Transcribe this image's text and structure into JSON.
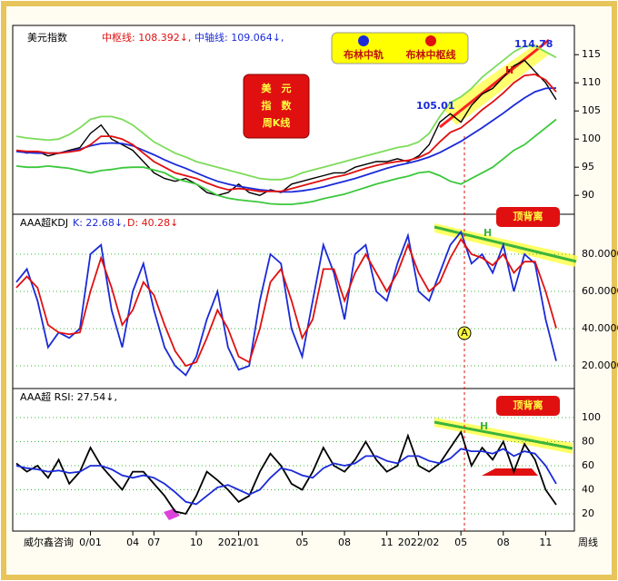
{
  "chart_data": [
    {
      "type": "line",
      "title": "美元指数",
      "center_label": "中枢线: 108.392↓,",
      "mid_label": "中轴线: 109.064↓,",
      "badge": [
        "美　元",
        "指　数",
        "周K线"
      ],
      "annotations": [
        "105.01",
        "114.78",
        "H"
      ],
      "xlim": [
        0,
        51
      ],
      "ylim": [
        86.8,
        120.2
      ],
      "yticks": [
        90,
        95,
        100,
        105,
        110,
        115
      ],
      "grid": false,
      "series": [
        {
          "color": "#000000",
          "values": [
            98,
            97.5,
            97.8,
            97,
            97.5,
            98,
            98.5,
            101,
            102.5,
            100,
            99,
            98,
            96,
            94,
            93,
            92.5,
            93,
            92,
            90.5,
            90,
            90.5,
            92,
            90.5,
            90,
            91,
            90.5,
            92,
            92.5,
            93,
            93.5,
            94,
            94,
            95,
            95.5,
            96,
            96,
            96.5,
            96,
            97,
            99,
            103,
            104.5,
            103,
            106,
            108,
            109,
            111,
            113,
            114,
            112,
            110,
            107
          ]
        },
        {
          "color": "#7ddc5a",
          "values": [
            100.5,
            100.2,
            100,
            99.8,
            100,
            100.8,
            102,
            103.5,
            104,
            104,
            103.5,
            102.5,
            101,
            99.5,
            98.5,
            97.5,
            96.8,
            96,
            95.5,
            95,
            94.5,
            94,
            93.5,
            93,
            92.8,
            92.8,
            93.2,
            94,
            94.5,
            95,
            95.5,
            96,
            96.5,
            97,
            97.5,
            98,
            98.5,
            98.8,
            99.5,
            101,
            104,
            106.5,
            107.5,
            109,
            111,
            112.5,
            114,
            115.5,
            116.5,
            116.5,
            115.5,
            114.5
          ]
        },
        {
          "color": "#3cc83c",
          "values": [
            95.2,
            95,
            95,
            95.2,
            95,
            94.8,
            94.4,
            94,
            94.4,
            94.6,
            94.9,
            95,
            95,
            94.5,
            94,
            93,
            92.5,
            92,
            91,
            90,
            89.5,
            89.2,
            89,
            88.8,
            88.5,
            88.4,
            88.4,
            88.6,
            88.9,
            89.4,
            89.8,
            90.2,
            90.8,
            91.4,
            92,
            92.5,
            93,
            93.4,
            94,
            94.2,
            93.5,
            92.5,
            92,
            93,
            94,
            95,
            96.5,
            98,
            99,
            100.5,
            102,
            103.5
          ]
        },
        {
          "name": "布林中轨",
          "color": "#1a2ad8",
          "values": [
            97.8,
            97.6,
            97.5,
            97.5,
            97.5,
            97.8,
            98.2,
            98.8,
            99.2,
            99.3,
            99.2,
            98.8,
            98,
            97.2,
            96.3,
            95.5,
            94.8,
            94,
            93.2,
            92.5,
            92,
            91.6,
            91.3,
            91,
            90.8,
            90.6,
            90.6,
            90.8,
            91.1,
            91.5,
            92,
            92.5,
            93,
            93.6,
            94.2,
            94.8,
            95.3,
            95.7,
            96.2,
            96.8,
            97.6,
            98.6,
            99.6,
            100.8,
            102,
            103.3,
            104.6,
            106,
            107.3,
            108.4,
            109,
            109.064
          ]
        },
        {
          "name": "布林中枢线",
          "color": "#e01010",
          "values": [
            98,
            97.8,
            97.8,
            97.5,
            97.5,
            97.7,
            98,
            99,
            100.5,
            100.5,
            100,
            99,
            97.5,
            96,
            95,
            94,
            93.5,
            93,
            92.2,
            91.5,
            91,
            91.2,
            91,
            90.7,
            90.7,
            90.7,
            91.2,
            91.7,
            92.2,
            92.7,
            93.2,
            93.6,
            94.2,
            94.8,
            95.3,
            95.7,
            96,
            96.2,
            96.7,
            97.6,
            99.5,
            101.2,
            102,
            103.5,
            105.2,
            106.6,
            108.2,
            110,
            111.3,
            111.5,
            110.5,
            108.392
          ]
        }
      ]
    },
    {
      "type": "line",
      "title": "AAA超KDJ",
      "k_label": "K: 22.68↓,",
      "d_label": "D: 40.28↓",
      "annotations": [
        "顶背离",
        "H",
        "A"
      ],
      "xlim": [
        0,
        51
      ],
      "ylim": [
        9.3,
        100.5
      ],
      "grid": true,
      "yticks": [
        {
          "value": 20,
          "label": "20.0000"
        },
        {
          "value": 40,
          "label": "40.0000"
        },
        {
          "value": 60,
          "label": "60.0000"
        },
        {
          "value": 80,
          "label": "80.0000"
        }
      ],
      "series": [
        {
          "color": "#1a2ad8",
          "values": [
            65,
            72,
            55,
            30,
            38,
            35,
            40,
            80,
            85,
            50,
            30,
            60,
            75,
            50,
            30,
            20,
            15,
            25,
            45,
            60,
            30,
            18,
            20,
            55,
            80,
            75,
            40,
            25,
            55,
            85,
            70,
            45,
            80,
            85,
            60,
            55,
            75,
            90,
            60,
            55,
            70,
            85,
            92,
            75,
            80,
            70,
            85,
            60,
            80,
            75,
            45,
            22.68
          ]
        },
        {
          "color": "#e01010",
          "values": [
            62,
            68,
            62,
            42,
            38,
            37,
            38,
            60,
            78,
            62,
            42,
            50,
            65,
            58,
            42,
            28,
            20,
            22,
            35,
            50,
            40,
            25,
            22,
            40,
            65,
            72,
            55,
            35,
            45,
            72,
            72,
            55,
            70,
            80,
            70,
            60,
            70,
            85,
            70,
            60,
            65,
            78,
            88,
            80,
            78,
            74,
            80,
            70,
            76,
            76,
            60,
            40.28
          ]
        }
      ]
    },
    {
      "type": "line",
      "title": "AAA超 RSI: 27.54↓,",
      "annotations": [
        "顶背离",
        "H"
      ],
      "xlim": [
        0,
        51
      ],
      "ylim": [
        5.7,
        122.6
      ],
      "yticks": [
        20,
        40,
        60,
        80,
        100
      ],
      "grid": true,
      "xticks": [
        {
          "value": 7,
          "label": "0/01"
        },
        {
          "value": 11,
          "label": "04"
        },
        {
          "value": 13,
          "label": "07"
        },
        {
          "value": 17,
          "label": "10"
        },
        {
          "value": 21,
          "label": "2021/01"
        },
        {
          "value": 27,
          "label": "05"
        },
        {
          "value": 31,
          "label": "08"
        },
        {
          "value": 35,
          "label": "11"
        },
        {
          "value": 38,
          "label": "2022/02"
        },
        {
          "value": 42,
          "label": "05"
        },
        {
          "value": 46,
          "label": "08"
        },
        {
          "value": 50,
          "label": "11"
        }
      ],
      "x_left_label": "威尔鑫咨询",
      "x_right_label": "周线",
      "series": [
        {
          "color": "#000000",
          "values": [
            62,
            55,
            60,
            50,
            65,
            45,
            55,
            75,
            60,
            50,
            40,
            55,
            55,
            45,
            35,
            22,
            20,
            35,
            55,
            48,
            40,
            30,
            35,
            55,
            70,
            60,
            45,
            40,
            55,
            75,
            60,
            55,
            65,
            80,
            65,
            55,
            60,
            85,
            60,
            55,
            62,
            75,
            88,
            60,
            75,
            65,
            80,
            55,
            78,
            65,
            40,
            27.54
          ]
        },
        {
          "color": "#1a2ad8",
          "values": [
            60,
            58,
            57,
            55,
            56,
            54,
            55,
            60,
            60,
            57,
            52,
            50,
            52,
            50,
            45,
            38,
            30,
            28,
            35,
            42,
            44,
            40,
            36,
            40,
            50,
            58,
            56,
            52,
            50,
            58,
            62,
            60,
            62,
            68,
            68,
            64,
            62,
            68,
            68,
            64,
            62,
            66,
            74,
            72,
            72,
            70,
            74,
            68,
            72,
            70,
            60,
            45
          ]
        }
      ]
    }
  ]
}
